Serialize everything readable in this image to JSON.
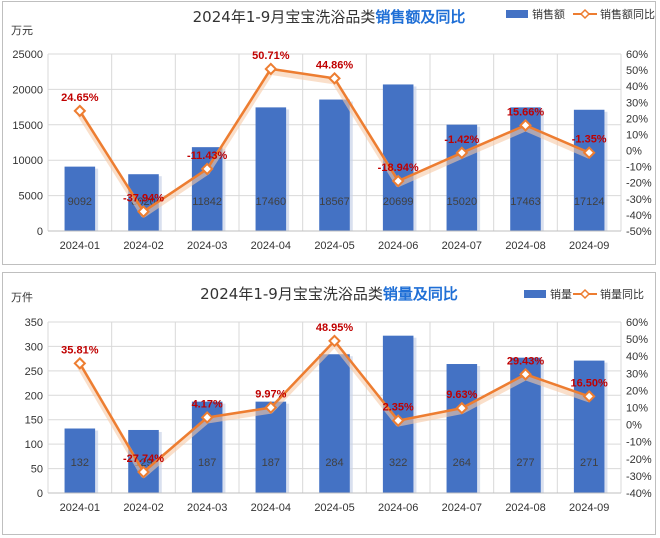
{
  "colors": {
    "bar": "#4472c4",
    "line": "#ed7d31",
    "label_red": "#c00000",
    "title_highlight": "#1f6fd6",
    "grid": "#d9d9d9"
  },
  "chart_data": [
    {
      "type": "bar",
      "title": "2024年1-9月宝宝洗浴品类",
      "title_highlight": "销售额及同比",
      "y_unit": "万元",
      "categories": [
        "2024-01",
        "2024-02",
        "2024-03",
        "2024-04",
        "2024-05",
        "2024-06",
        "2024-07",
        "2024-08",
        "2024-09"
      ],
      "ylim": [
        0,
        25000
      ],
      "y_ticks": [
        "0",
        "5000",
        "10000",
        "15000",
        "20000",
        "25000"
      ],
      "y2lim": [
        -50,
        60
      ],
      "y2_ticks": [
        "-50%",
        "-40%",
        "-30%",
        "-20%",
        "-10%",
        "0%",
        "10%",
        "20%",
        "30%",
        "40%",
        "50%",
        "60%"
      ],
      "series": [
        {
          "name": "销售额",
          "type": "bar",
          "axis": "left",
          "values": [
            9092,
            8020,
            11842,
            17460,
            18567,
            20699,
            15020,
            17463,
            17124
          ],
          "labels": [
            "9092",
            "8020",
            "11842",
            "17460",
            "18567",
            "20699",
            "15020",
            "17463",
            "17124"
          ]
        },
        {
          "name": "销售额同比",
          "type": "line",
          "axis": "right",
          "values": [
            24.65,
            -37.94,
            -11.43,
            50.71,
            44.86,
            -18.94,
            -1.42,
            15.66,
            -1.35
          ],
          "labels": [
            "24.65%",
            "-37.94%",
            "-11.43%",
            "50.71%",
            "44.86%",
            "-18.94%",
            "-1.42%",
            "15.66%",
            "-1.35%"
          ]
        }
      ],
      "grid": true,
      "legend_position": "top-right"
    },
    {
      "type": "bar",
      "title": "2024年1-9月宝宝洗浴品类",
      "title_highlight": "销量及同比",
      "y_unit": "万件",
      "categories": [
        "2024-01",
        "2024-02",
        "2024-03",
        "2024-04",
        "2024-05",
        "2024-06",
        "2024-07",
        "2024-08",
        "2024-09"
      ],
      "ylim": [
        0,
        350
      ],
      "y_ticks": [
        "0",
        "50",
        "100",
        "150",
        "200",
        "250",
        "300",
        "350"
      ],
      "y2lim": [
        -40,
        60
      ],
      "y2_ticks": [
        "-40%",
        "-30%",
        "-20%",
        "-10%",
        "0%",
        "10%",
        "20%",
        "30%",
        "40%",
        "50%",
        "60%"
      ],
      "series": [
        {
          "name": "销量",
          "type": "bar",
          "axis": "left",
          "values": [
            132,
            129,
            187,
            187,
            284,
            322,
            264,
            277,
            271
          ],
          "labels": [
            "132",
            "129",
            "187",
            "187",
            "284",
            "322",
            "264",
            "277",
            "271"
          ]
        },
        {
          "name": "销量同比",
          "type": "line",
          "axis": "right",
          "values": [
            35.81,
            -27.74,
            4.17,
            9.97,
            48.95,
            2.35,
            9.63,
            29.43,
            16.5
          ],
          "labels": [
            "35.81%",
            "-27.74%",
            "4.17%",
            "9.97%",
            "48.95%",
            "2.35%",
            "9.63%",
            "29.43%",
            "16.50%"
          ]
        }
      ],
      "grid": true,
      "legend_position": "top-right"
    }
  ]
}
